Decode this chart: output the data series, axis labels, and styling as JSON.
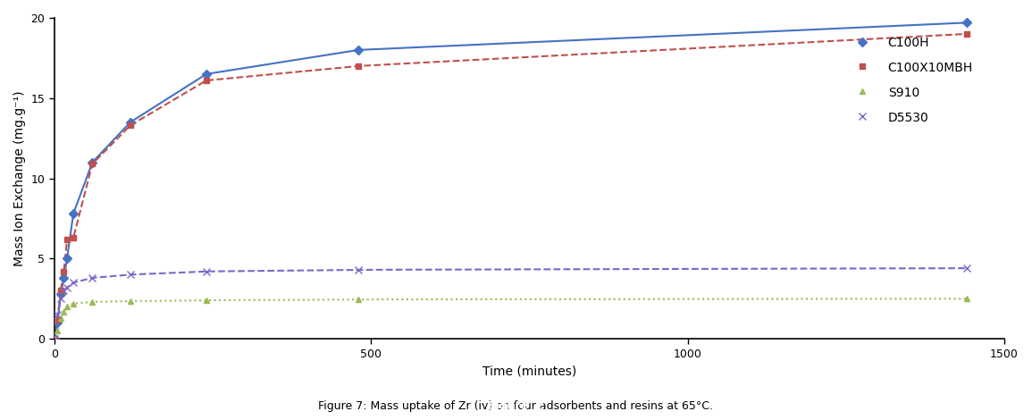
{
  "xlabel": "Time (minutes)",
  "ylabel": "Mass Ion Exchange (mg.g⁻¹)",
  "xlim": [
    0,
    1500
  ],
  "ylim": [
    0,
    20
  ],
  "xticks": [
    0,
    500,
    1000,
    1500
  ],
  "yticks": [
    0,
    5,
    10,
    15,
    20
  ],
  "series": {
    "C100H": {
      "x": [
        0,
        5,
        10,
        15,
        20,
        30,
        60,
        120,
        240,
        480,
        1440
      ],
      "y": [
        0,
        1.0,
        2.8,
        3.8,
        5.0,
        7.8,
        11.0,
        13.5,
        16.5,
        18.0,
        19.7
      ],
      "color": "#4472C4",
      "linestyle": "-",
      "marker": "D",
      "markersize": 5,
      "linewidth": 1.5,
      "label": "C100H"
    },
    "C100X10MBH": {
      "x": [
        0,
        5,
        10,
        15,
        20,
        30,
        60,
        120,
        240,
        480,
        1440
      ],
      "y": [
        0,
        1.2,
        3.0,
        4.2,
        6.2,
        6.3,
        10.9,
        13.3,
        16.1,
        17.0,
        19.0
      ],
      "color": "#C0504D",
      "linestyle": "--",
      "marker": "s",
      "markersize": 5,
      "linewidth": 1.5,
      "label": "C100X10MBH"
    },
    "S910": {
      "x": [
        0,
        5,
        10,
        15,
        20,
        30,
        60,
        120,
        240,
        480,
        1440
      ],
      "y": [
        0,
        0.5,
        1.3,
        1.7,
        2.0,
        2.2,
        2.3,
        2.35,
        2.4,
        2.45,
        2.5
      ],
      "color": "#9BBB59",
      "linestyle": ":",
      "marker": "^",
      "markersize": 5,
      "linewidth": 1.5,
      "label": "S910"
    },
    "D5530": {
      "x": [
        0,
        5,
        10,
        15,
        20,
        30,
        60,
        120,
        240,
        480,
        1440
      ],
      "y": [
        0,
        1.5,
        2.5,
        3.0,
        3.2,
        3.5,
        3.8,
        4.0,
        4.2,
        4.3,
        4.4
      ],
      "color": "#7B68C8",
      "linestyle": "--",
      "marker": "x",
      "markersize": 6,
      "linewidth": 1.5,
      "label": "D5530"
    }
  },
  "background_color": "#FFFFFF",
  "figure_caption_bold": "Figure 7:",
  "figure_caption_normal": " Mass uptake of Zr (iv) on four adsorbents and resins at 65°C."
}
